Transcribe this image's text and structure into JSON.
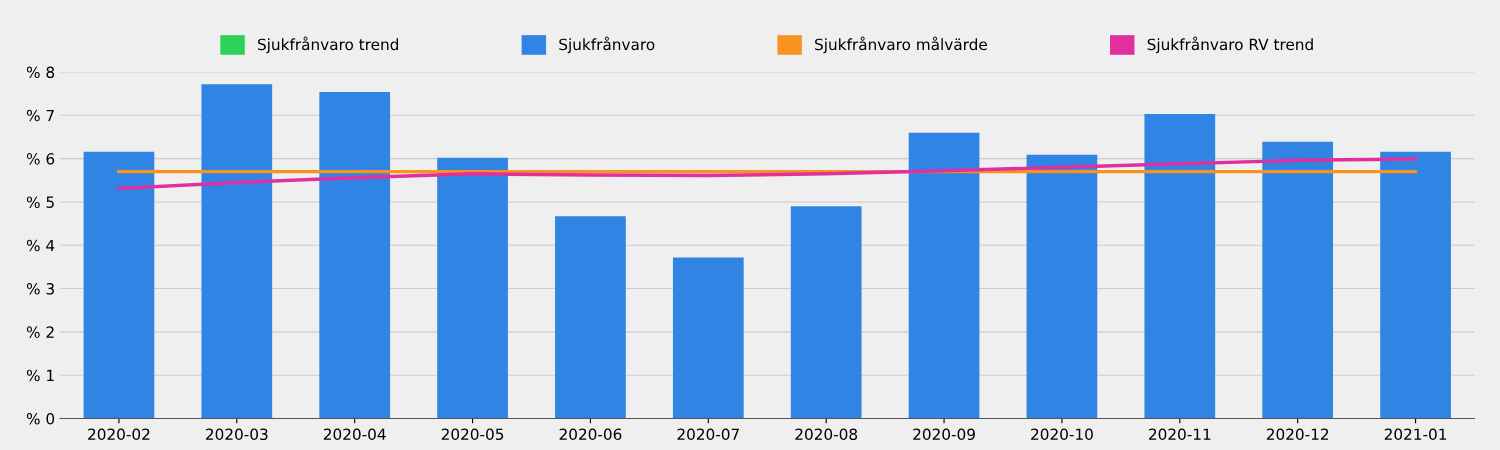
{
  "chart_data": {
    "type": "bar",
    "categories": [
      "2020-02",
      "2020-03",
      "2020-04",
      "2020-05",
      "2020-06",
      "2020-07",
      "2020-08",
      "2020-09",
      "2020-10",
      "2020-11",
      "2020-12",
      "2021-01"
    ],
    "series": [
      {
        "name": "Sjukfrånvaro trend",
        "type": "line",
        "color": "#2ed158",
        "values": [
          null,
          null,
          null,
          null,
          null,
          null,
          null,
          null,
          null,
          null,
          null,
          null
        ]
      },
      {
        "name": "Sjukfrånvaro",
        "color": "#3084e3",
        "values": [
          6.16,
          7.72,
          7.54,
          6.02,
          4.67,
          3.72,
          4.9,
          6.6,
          6.09,
          7.03,
          6.39,
          6.16
        ]
      },
      {
        "name": "Sjukfrånvaro målvärde",
        "type": "line",
        "color": "#f7931e",
        "values": [
          5.7,
          5.7,
          5.7,
          5.7,
          5.7,
          5.7,
          5.7,
          5.7,
          5.7,
          5.7,
          5.7,
          5.7
        ]
      },
      {
        "name": "Sjukfrånvaro RV trend",
        "type": "line",
        "color": "#e0309e",
        "values": [
          5.31,
          5.45,
          5.56,
          5.65,
          5.62,
          5.61,
          5.65,
          5.72,
          5.8,
          5.88,
          5.96,
          5.99
        ]
      }
    ],
    "ylim": [
      0,
      8
    ],
    "yticks": [
      {
        "value": 0,
        "label": "% 0"
      },
      {
        "value": 1,
        "label": "% 1"
      },
      {
        "value": 2,
        "label": "% 2"
      },
      {
        "value": 3,
        "label": "% 3"
      },
      {
        "value": 4,
        "label": "% 4"
      },
      {
        "value": 5,
        "label": "% 5"
      },
      {
        "value": 6,
        "label": "% 6"
      },
      {
        "value": 7,
        "label": "% 7"
      },
      {
        "value": 8,
        "label": "% 8"
      }
    ],
    "grid": "y",
    "legend": "top"
  }
}
